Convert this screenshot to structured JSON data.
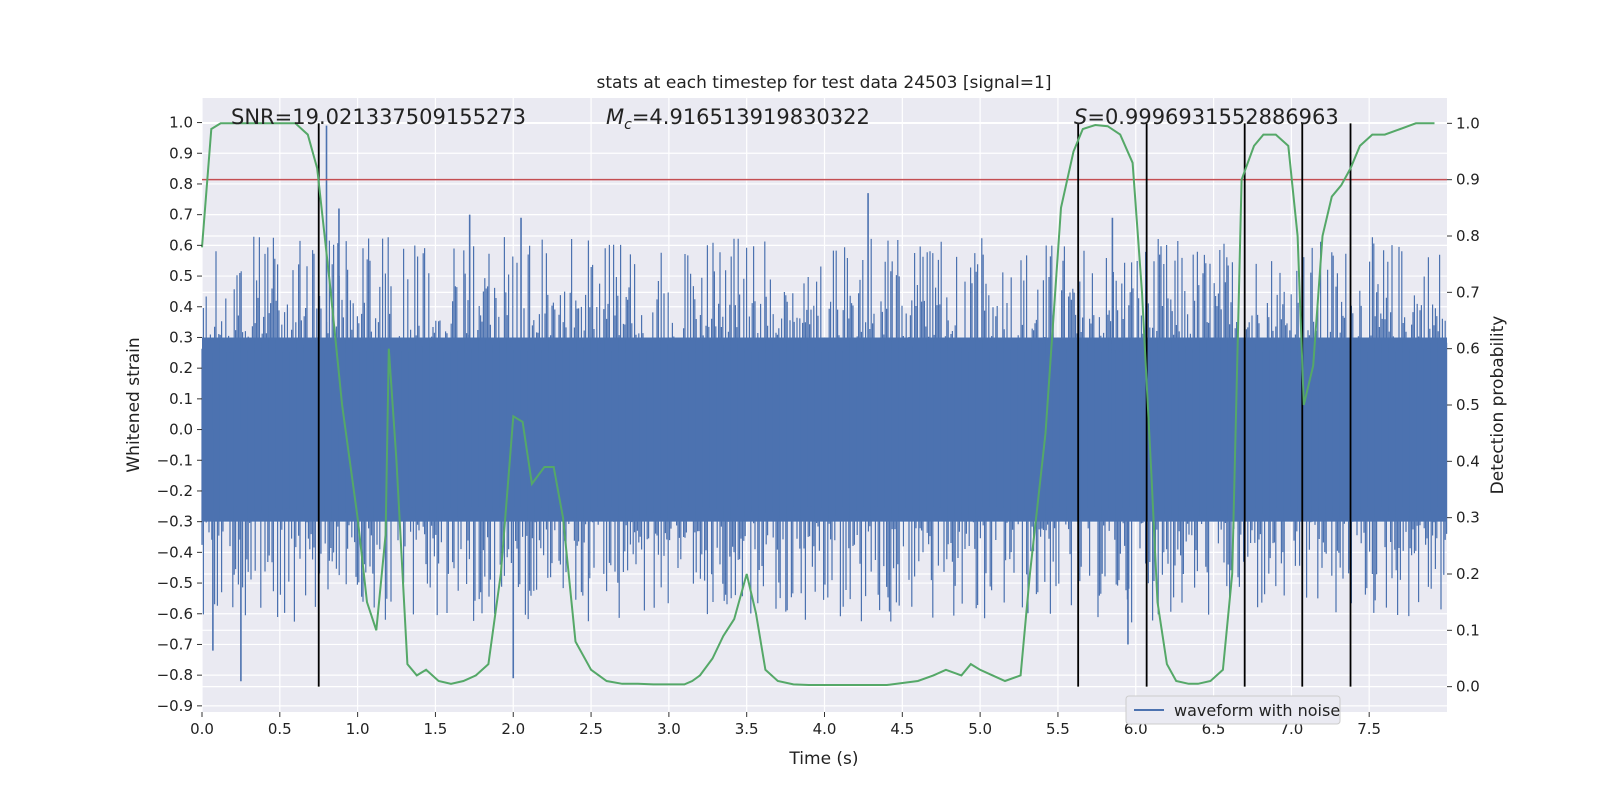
{
  "chart_data": {
    "type": "line",
    "title": "stats at each timestep for test data 24503 [signal=1]",
    "xlabel": "Time (s)",
    "ylabel_left": "Whitened strain",
    "ylabel_right": "Detection probability",
    "xlim": [
      0.0,
      8.0
    ],
    "ylim_left": [
      -0.92,
      1.08
    ],
    "ylim_right": [
      -0.045,
      1.045
    ],
    "x_ticks": [
      0.0,
      0.5,
      1.0,
      1.5,
      2.0,
      2.5,
      3.0,
      3.5,
      4.0,
      4.5,
      5.0,
      5.5,
      6.0,
      6.5,
      7.0,
      7.5
    ],
    "y_ticks_left": [
      -0.9,
      -0.8,
      -0.7,
      -0.6,
      -0.5,
      -0.4,
      -0.3,
      -0.2,
      -0.1,
      0.0,
      0.1,
      0.2,
      0.3,
      0.4,
      0.5,
      0.6,
      0.7,
      0.8,
      0.9,
      1.0
    ],
    "y_ticks_right": [
      0.0,
      0.1,
      0.2,
      0.3,
      0.4,
      0.5,
      0.6,
      0.7,
      0.8,
      0.9,
      1.0
    ],
    "grid": true,
    "legend_position": "bottom-right",
    "annotations": {
      "snr": "SNR=19.021337509155273",
      "mc_symbol": "M",
      "mc_sub": "c",
      "mc_value": "=4.916513919830322",
      "s_symbol": "S",
      "s_value": "=0.9996931552886963"
    },
    "threshold": {
      "value": 0.9,
      "axis": "right",
      "color": "#c44e52"
    },
    "event_lines": {
      "x": [
        0.75,
        5.63,
        6.07,
        6.7,
        7.07,
        7.38
      ],
      "ymin": 0.0,
      "ymax": 1.0,
      "axis": "right",
      "color": "#000000"
    },
    "series": [
      {
        "name": "waveform with noise",
        "axis": "left",
        "color": "#4c72b0",
        "kind": "noise-band",
        "band_low": -0.3,
        "band_high": 0.3,
        "x_range": [
          0.0,
          8.0
        ],
        "peaks": [
          {
            "x": 0.8,
            "y": 0.99
          },
          {
            "x": 0.88,
            "y": 0.72
          },
          {
            "x": 1.72,
            "y": 0.7
          },
          {
            "x": 2.05,
            "y": 0.69
          },
          {
            "x": 4.28,
            "y": 0.77
          },
          {
            "x": 5.85,
            "y": 0.69
          },
          {
            "x": 0.25,
            "y": -0.82
          },
          {
            "x": 2.0,
            "y": -0.81
          },
          {
            "x": 5.95,
            "y": -0.7
          },
          {
            "x": 0.07,
            "y": -0.72
          }
        ]
      },
      {
        "name": "detection probability",
        "axis": "right",
        "color": "#55a868",
        "kind": "line",
        "x": [
          0.0,
          0.06,
          0.12,
          0.2,
          0.3,
          0.4,
          0.5,
          0.6,
          0.68,
          0.74,
          0.82,
          0.9,
          1.0,
          1.06,
          1.12,
          1.18,
          1.2,
          1.25,
          1.32,
          1.38,
          1.44,
          1.52,
          1.6,
          1.68,
          1.76,
          1.84,
          1.92,
          2.0,
          2.06,
          2.12,
          2.2,
          2.26,
          2.32,
          2.4,
          2.5,
          2.6,
          2.7,
          2.8,
          2.9,
          3.0,
          3.1,
          3.15,
          3.2,
          3.28,
          3.35,
          3.42,
          3.5,
          3.56,
          3.62,
          3.7,
          3.8,
          3.9,
          4.0,
          4.2,
          4.4,
          4.6,
          4.7,
          4.78,
          4.88,
          4.94,
          5.0,
          5.08,
          5.16,
          5.26,
          5.32,
          5.42,
          5.52,
          5.6,
          5.66,
          5.74,
          5.82,
          5.9,
          5.98,
          6.04,
          6.1,
          6.14,
          6.2,
          6.26,
          6.34,
          6.4,
          6.48,
          6.56,
          6.62,
          6.68,
          6.76,
          6.82,
          6.9,
          6.98,
          7.04,
          7.08,
          7.14,
          7.2,
          7.26,
          7.32,
          7.38,
          7.44,
          7.52,
          7.6,
          7.7,
          7.8,
          7.92
        ],
        "y": [
          0.78,
          0.99,
          1.0,
          1.0,
          1.0,
          1.0,
          1.0,
          1.0,
          0.98,
          0.92,
          0.72,
          0.5,
          0.3,
          0.15,
          0.1,
          0.27,
          0.6,
          0.4,
          0.04,
          0.02,
          0.03,
          0.01,
          0.005,
          0.01,
          0.02,
          0.04,
          0.2,
          0.48,
          0.47,
          0.36,
          0.39,
          0.39,
          0.3,
          0.08,
          0.03,
          0.01,
          0.005,
          0.005,
          0.004,
          0.004,
          0.004,
          0.01,
          0.02,
          0.05,
          0.09,
          0.12,
          0.2,
          0.13,
          0.03,
          0.01,
          0.004,
          0.003,
          0.003,
          0.003,
          0.003,
          0.01,
          0.02,
          0.03,
          0.02,
          0.04,
          0.03,
          0.02,
          0.01,
          0.02,
          0.2,
          0.45,
          0.85,
          0.95,
          0.99,
          0.997,
          0.995,
          0.98,
          0.93,
          0.7,
          0.38,
          0.15,
          0.04,
          0.01,
          0.005,
          0.005,
          0.01,
          0.03,
          0.2,
          0.9,
          0.96,
          0.98,
          0.98,
          0.96,
          0.8,
          0.5,
          0.57,
          0.8,
          0.87,
          0.89,
          0.92,
          0.96,
          0.98,
          0.98,
          0.99,
          1.0,
          1.0
        ]
      }
    ]
  }
}
